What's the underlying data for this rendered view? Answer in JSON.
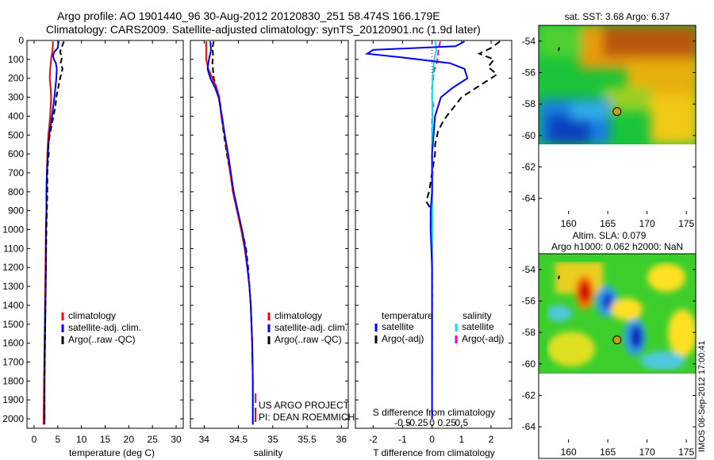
{
  "header": {
    "line1": "Argo profile: AO 1901440_96 30-Aug-2012 20120830_251 58.474S 166.179E",
    "line2": "Climatology: CARS2009. Satellite-adjusted climatology: synTS_20120901.nc (1.9d later)"
  },
  "stamp": "IMOS 08-Sep-2012 17:00:41",
  "colors": {
    "climatology": "#ff0000",
    "satellite": "#0000ff",
    "argo": "#000000",
    "sat_salinity": "#00e5e5",
    "argo_adj_salinity": "#e600e6"
  },
  "chart_data": [
    {
      "type": "line",
      "id": "temperature",
      "xlabel": "temperature (deg C)",
      "xlim": [
        -1.5,
        31.5
      ],
      "xticks": [
        0,
        5,
        10,
        15,
        20,
        25,
        30
      ],
      "ylim": [
        0,
        2050
      ],
      "yticks": [
        0,
        100,
        200,
        300,
        400,
        500,
        600,
        700,
        800,
        900,
        1000,
        1100,
        1200,
        1300,
        1400,
        1500,
        1600,
        1700,
        1800,
        1900,
        2000
      ],
      "legend": [
        "climatology",
        "satellite-adj. clim.",
        "Argo(..raw -QC)"
      ],
      "legend_placement": "lower-center",
      "series": [
        {
          "name": "climatology",
          "depth": [
            5,
            50,
            100,
            150,
            200,
            250,
            300,
            400,
            500,
            600,
            700,
            800,
            900,
            1000,
            1200,
            1400,
            1600,
            1800,
            2000,
            2030
          ],
          "values": [
            4.0,
            3.9,
            3.6,
            3.4,
            3.3,
            3.5,
            3.6,
            3.4,
            3.0,
            2.8,
            2.7,
            2.6,
            2.6,
            2.5,
            2.4,
            2.3,
            2.2,
            2.1,
            2.0,
            2.0
          ]
        },
        {
          "name": "satellite-adj. clim.",
          "depth": [
            5,
            40,
            60,
            80,
            100,
            120,
            150,
            200,
            250,
            300,
            400,
            500,
            600,
            700,
            800,
            900,
            1000,
            1200,
            1400,
            1600,
            1800,
            2000,
            2030
          ],
          "values": [
            5.2,
            5.0,
            4.3,
            4.0,
            4.2,
            4.6,
            4.8,
            4.7,
            4.5,
            4.3,
            3.8,
            3.2,
            2.9,
            2.7,
            2.6,
            2.6,
            2.5,
            2.5,
            2.4,
            2.3,
            2.2,
            2.2,
            2.2
          ]
        },
        {
          "name": "Argo(..raw -QC)",
          "depth": [
            5,
            30,
            60,
            90,
            120,
            150,
            200,
            250,
            300,
            350,
            400,
            450,
            500,
            550,
            600,
            650,
            700,
            800,
            900,
            1000,
            1200,
            1400,
            1600,
            1800,
            2000
          ],
          "values": [
            6.3,
            5.9,
            5.5,
            5.9,
            5.6,
            6.0,
            5.5,
            5.1,
            4.7,
            4.5,
            4.1,
            3.7,
            3.3,
            3.0,
            3.1,
            2.9,
            2.8,
            2.8,
            2.7,
            2.6,
            2.5,
            2.4,
            2.3,
            2.2,
            2.2
          ]
        }
      ]
    },
    {
      "type": "line",
      "id": "salinity",
      "xlabel": "salinity",
      "xlim": [
        33.8,
        36.1
      ],
      "xticks": [
        34,
        34.5,
        35,
        35.5,
        36
      ],
      "ylim": [
        0,
        2050
      ],
      "legend": [
        "climatology",
        "satellite-adj. clim.",
        "Argo(..raw -QC)"
      ],
      "legend_placement": "lower-center",
      "annotations": [
        "US ARGO PROJECT",
        "PI: DEAN ROEMMICH"
      ],
      "series": [
        {
          "name": "climatology",
          "depth": [
            5,
            50,
            100,
            150,
            200,
            250,
            300,
            400,
            500,
            600,
            700,
            800,
            900,
            1000,
            1100,
            1200,
            1300,
            1400,
            1500,
            1600,
            1800,
            2000,
            2030
          ],
          "values": [
            34.03,
            34.03,
            34.03,
            34.06,
            34.12,
            34.18,
            34.22,
            34.25,
            34.3,
            34.34,
            34.38,
            34.42,
            34.48,
            34.54,
            34.59,
            34.63,
            34.66,
            34.68,
            34.69,
            34.7,
            34.71,
            34.71,
            34.71
          ]
        },
        {
          "name": "satellite-adj. clim.",
          "depth": [
            5,
            50,
            100,
            150,
            200,
            250,
            300,
            400,
            500,
            600,
            700,
            800,
            900,
            1000,
            1100,
            1200,
            1300,
            1400,
            1500,
            1600,
            1800,
            2000,
            2030
          ],
          "values": [
            34.09,
            34.1,
            34.07,
            34.05,
            34.09,
            34.16,
            34.21,
            34.26,
            34.3,
            34.35,
            34.39,
            34.43,
            34.49,
            34.55,
            34.6,
            34.63,
            34.66,
            34.68,
            34.69,
            34.7,
            34.71,
            34.71,
            34.71
          ]
        },
        {
          "name": "Argo(..raw -QC)",
          "depth": [
            5,
            40,
            80,
            120,
            160,
            200,
            250,
            300,
            350,
            400,
            450,
            500,
            600,
            700,
            800,
            900,
            1000,
            1100,
            1200,
            1300,
            1400,
            1500,
            1600,
            1700
          ],
          "values": [
            34.14,
            34.12,
            34.13,
            34.12,
            34.13,
            34.14,
            34.18,
            34.22,
            34.24,
            34.25,
            34.27,
            34.29,
            34.33,
            34.38,
            34.42,
            34.48,
            34.55,
            34.61,
            34.64,
            34.66,
            34.68,
            34.69,
            34.7,
            34.7
          ]
        }
      ]
    },
    {
      "type": "line",
      "id": "differences",
      "xlabel": "T difference from climatology",
      "xlabel_top": "S difference from climatology",
      "xlim": [
        -2.6,
        2.7
      ],
      "xticks": [
        -2,
        -1,
        0,
        1,
        2
      ],
      "s_xticks": [
        -0.5,
        -0.25,
        0,
        0.25,
        0.5
      ],
      "ylim": [
        0,
        2050
      ],
      "legend_titles": [
        "temperature",
        "salinity"
      ],
      "legend": [
        "satellite",
        "Argo(-adj)",
        "satellite",
        "Argo(-adj)"
      ],
      "series": [
        {
          "name": "temperature satellite",
          "depth": [
            5,
            30,
            50,
            70,
            90,
            120,
            150,
            200,
            250,
            300,
            400,
            500,
            600,
            700,
            800,
            900,
            1000,
            1200,
            1400,
            1600,
            1800,
            2000
          ],
          "values": [
            1.1,
            0.8,
            -2.0,
            -2.2,
            -1.0,
            0.6,
            1.1,
            1.2,
            0.7,
            0.3,
            0.1,
            0.05,
            0.0,
            0.0,
            0.0,
            -0.05,
            -0.05,
            0.0,
            0.0,
            0.0,
            0.0,
            0.0
          ]
        },
        {
          "name": "temperature Argo(-adj)",
          "depth": [
            5,
            40,
            70,
            100,
            140,
            180,
            220,
            260,
            300,
            340,
            380,
            420,
            480,
            550,
            600,
            650,
            700,
            800,
            850,
            900,
            1000,
            1200,
            1400,
            1600
          ],
          "values": [
            2.3,
            2.0,
            1.6,
            2.1,
            1.9,
            2.2,
            1.8,
            1.4,
            1.0,
            0.8,
            0.6,
            0.4,
            0.2,
            0.1,
            0.1,
            0.05,
            0.0,
            -0.1,
            -0.2,
            0.0,
            0.0,
            0.0,
            0.0,
            0.0
          ]
        },
        {
          "name": "salinity satellite",
          "depth": [
            5,
            50,
            100,
            150,
            200,
            250,
            300,
            400,
            500,
            600,
            700,
            800,
            900,
            1000,
            1100,
            1200,
            1400,
            1600,
            1800,
            2000
          ],
          "values": [
            0.06,
            0.07,
            0.04,
            0.02,
            0.01,
            0.005,
            0.0,
            0.01,
            0.0,
            0.0,
            0.005,
            0.005,
            0.005,
            0.005,
            0.005,
            0.0,
            0.0,
            0.0,
            0.0,
            0.0
          ]
        },
        {
          "name": "salinity Argo(-adj)",
          "depth": [
            5,
            40,
            80,
            120,
            160,
            200,
            250,
            300,
            350,
            400,
            500,
            600,
            700,
            800,
            900,
            1000,
            1200,
            1400,
            1600,
            1800
          ],
          "values": [
            0.14,
            0.11,
            0.1,
            0.08,
            0.03,
            0.02,
            0.0,
            0.0,
            0.02,
            0.0,
            0.0,
            0.0,
            0.01,
            0.0,
            0.0,
            0.0,
            0.0,
            0.0,
            0.0,
            0.0
          ]
        }
      ]
    },
    {
      "type": "heatmap",
      "id": "sst-map",
      "title": "sat. SST: 3.68 Argo: 6.37",
      "xlim": [
        156.2,
        176.2
      ],
      "ylim": [
        -65,
        -53
      ],
      "xticks": [
        160,
        165,
        170,
        175
      ],
      "yticks": [
        -54,
        -56,
        -58,
        -60,
        -62,
        -64
      ],
      "float_position": {
        "lon": 166.179,
        "lat": -58.474
      }
    },
    {
      "type": "heatmap",
      "id": "sla-map",
      "title_line1": "Altim. SLA: 0.079",
      "title_line2": "Argo h1000: 0.062 h2000: NaN",
      "xlim": [
        156.2,
        176.2
      ],
      "ylim": [
        -65,
        -53
      ],
      "xticks": [
        160,
        165,
        170,
        175
      ],
      "yticks": [
        -54,
        -56,
        -58,
        -60,
        -62,
        -64
      ],
      "float_position": {
        "lon": 166.179,
        "lat": -58.474
      }
    }
  ]
}
